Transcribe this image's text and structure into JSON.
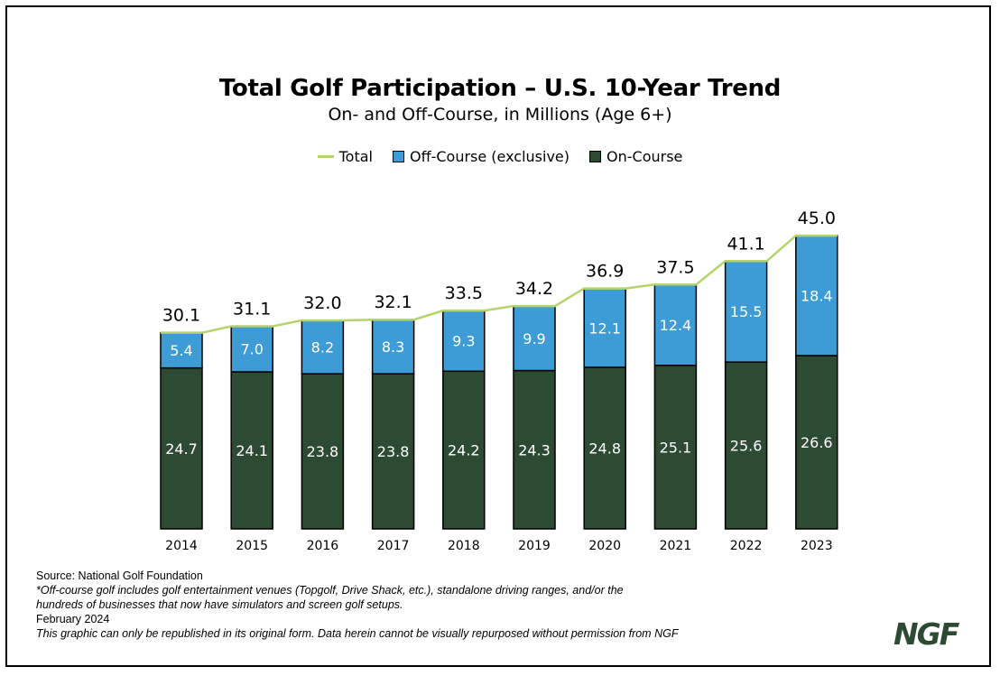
{
  "chart_data": {
    "type": "bar",
    "stacked": true,
    "title": "Total Golf Participation – U.S. 10-Year Trend",
    "subtitle": "On- and Off-Course, in Millions (Age 6+)",
    "categories": [
      "2014",
      "2015",
      "2016",
      "2017",
      "2018",
      "2019",
      "2020",
      "2021",
      "2022",
      "2023"
    ],
    "series": [
      {
        "name": "On-Course",
        "color": "#2d4a33",
        "values": [
          24.7,
          24.1,
          23.8,
          23.8,
          24.2,
          24.3,
          24.8,
          25.1,
          25.6,
          26.6
        ],
        "labels": [
          "24.7",
          "24.1",
          "23.8",
          "23.8",
          "24.2",
          "24.3",
          "24.8",
          "25.1",
          "25.6",
          "26.6"
        ]
      },
      {
        "name": "Off-Course (exclusive)",
        "color": "#3d9bd6",
        "values": [
          5.4,
          7.0,
          8.2,
          8.3,
          9.3,
          9.9,
          12.1,
          12.4,
          15.5,
          18.4
        ],
        "labels": [
          "5.4",
          "7.0",
          "8.2",
          "8.3",
          "9.3",
          "9.9",
          "12.1",
          "12.4",
          "15.5",
          "18.4"
        ]
      }
    ],
    "total": {
      "name": "Total",
      "color": "#b5d36b",
      "values": [
        30.1,
        31.1,
        32.0,
        32.1,
        33.5,
        34.2,
        36.9,
        37.5,
        41.1,
        45.0
      ],
      "labels": [
        "30.1",
        "31.1",
        "32.0",
        "32.1",
        "33.5",
        "34.2",
        "36.9",
        "37.5",
        "41.1",
        "45.0"
      ]
    },
    "ylim": [
      0,
      45
    ],
    "legend_position": "top-center",
    "grid": false
  },
  "legend": {
    "total": "Total",
    "off_course": "Off-Course (exclusive)",
    "on_course": "On-Course"
  },
  "footer": {
    "source": "Source: National Golf Foundation",
    "note_line1": "*Off-course golf includes golf entertainment venues (Topgolf, Drive Shack, etc.), standalone driving ranges, and/or the",
    "note_line2": "hundreds of businesses that now have simulators and screen golf setups.",
    "date": "February 2024",
    "rights": "This graphic can only be republished in its original form. Data herein cannot be visually repurposed without permission from NGF"
  },
  "logo_text": "NGF"
}
